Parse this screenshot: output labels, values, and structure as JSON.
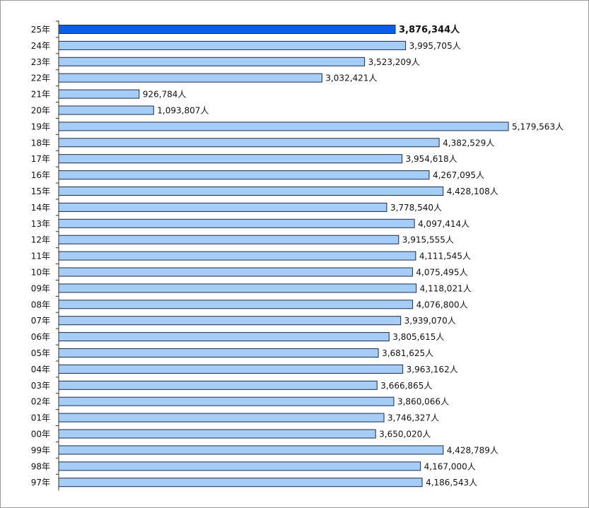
{
  "chart_data": {
    "type": "bar",
    "orientation": "horizontal",
    "title": "",
    "xlabel": "",
    "ylabel": "",
    "unit": "人",
    "xlim": [
      0,
      5400000
    ],
    "grid": false,
    "legend": "none",
    "highlight_index": 0,
    "colors": {
      "bar": "#a6cdf5",
      "bar_highlight": "#0a5fe8",
      "bar_border": "#1c2a4a",
      "axis": "#333333"
    },
    "categories": [
      "25年",
      "24年",
      "23年",
      "22年",
      "21年",
      "20年",
      "19年",
      "18年",
      "17年",
      "16年",
      "15年",
      "14年",
      "13年",
      "12年",
      "11年",
      "10年",
      "09年",
      "08年",
      "07年",
      "06年",
      "05年",
      "04年",
      "03年",
      "02年",
      "01年",
      "00年",
      "99年",
      "98年",
      "97年"
    ],
    "values": [
      3876344,
      3995705,
      3523209,
      3032421,
      926784,
      1093807,
      5179563,
      4382529,
      3954618,
      4267095,
      4428108,
      3778540,
      4097414,
      3915555,
      4111545,
      4075495,
      4118021,
      4076800,
      3939070,
      3805615,
      3681625,
      3963162,
      3666865,
      3860066,
      3746327,
      3650020,
      4428789,
      4167000,
      4186543
    ],
    "value_labels": [
      "3,876,344人",
      "3,995,705人",
      "3,523,209人",
      "3,032,421人",
      "926,784人",
      "1,093,807人",
      "5,179,563人",
      "4,382,529人",
      "3,954,618人",
      "4,267,095人",
      "4,428,108人",
      "3,778,540人",
      "4,097,414人",
      "3,915,555人",
      "4,111,545人",
      "4,075,495人",
      "4,118,021人",
      "4,076,800人",
      "3,939,070人",
      "3,805,615人",
      "3,681,625人",
      "3,963,162人",
      "3,666,865人",
      "3,860,066人",
      "3,746,327人",
      "3,650,020人",
      "4,428,789人",
      "4,167,000人",
      "4,186,543人"
    ]
  }
}
